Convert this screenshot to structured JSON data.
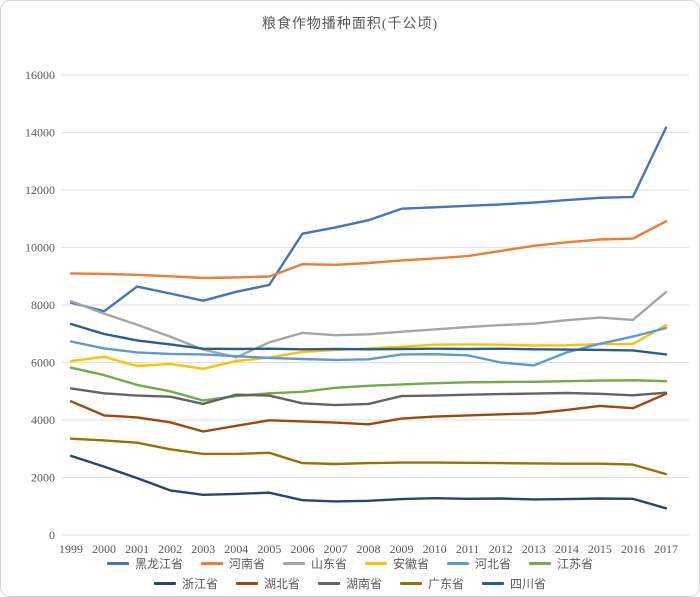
{
  "header": {
    "title": "粮食作物播种面积(千公顷)"
  },
  "colors": {
    "background": "#ffffff",
    "card_border": "#d6d6d6",
    "gridline": "#e2e2e2",
    "axis_text": "#595959",
    "title_text": "#595959"
  },
  "chart_data": {
    "type": "line",
    "title": "粮食作物播种面积(千公顷)",
    "xlabel": "",
    "ylabel": "",
    "x": [
      1999,
      2000,
      2001,
      2002,
      2003,
      2004,
      2005,
      2006,
      2007,
      2008,
      2009,
      2010,
      2011,
      2012,
      2013,
      2014,
      2015,
      2016,
      2017
    ],
    "ylim": [
      0,
      16000
    ],
    "yticks": [
      0,
      2000,
      4000,
      6000,
      8000,
      10000,
      12000,
      14000,
      16000
    ],
    "grid": "horizontal-only",
    "legend_position": "bottom",
    "legend_rows": [
      6,
      5
    ],
    "series": [
      {
        "name": "黑龙江省",
        "color": "#4472C4",
        "values": [
          8080,
          7780,
          8640,
          8400,
          8150,
          8460,
          8700,
          10480,
          10700,
          10950,
          11350,
          11400,
          11450,
          11500,
          11560,
          11650,
          11730,
          11760,
          14170
        ]
      },
      {
        "name": "河南省",
        "color": "#ED7D31",
        "values": [
          9100,
          9080,
          9050,
          9000,
          8940,
          8960,
          8990,
          9420,
          9400,
          9460,
          9550,
          9620,
          9700,
          9880,
          10060,
          10180,
          10280,
          10310,
          10910
        ]
      },
      {
        "name": "山东省",
        "color": "#A5A5A5",
        "values": [
          8130,
          7700,
          7310,
          6900,
          6450,
          6180,
          6700,
          7030,
          6950,
          6980,
          7070,
          7150,
          7230,
          7300,
          7350,
          7470,
          7560,
          7480,
          8450
        ]
      },
      {
        "name": "安徽省",
        "color": "#FFC000",
        "values": [
          6050,
          6200,
          5880,
          5950,
          5780,
          6050,
          6170,
          6370,
          6440,
          6490,
          6550,
          6620,
          6630,
          6620,
          6590,
          6600,
          6640,
          6640,
          7300
        ]
      },
      {
        "name": "河北省",
        "color": "#5B9BD5",
        "values": [
          6730,
          6490,
          6350,
          6300,
          6280,
          6220,
          6160,
          6120,
          6090,
          6110,
          6280,
          6290,
          6250,
          6000,
          5900,
          6350,
          6650,
          6900,
          7200
        ]
      },
      {
        "name": "江苏省",
        "color": "#70AD47",
        "values": [
          5820,
          5560,
          5220,
          5000,
          4680,
          4830,
          4930,
          4980,
          5120,
          5190,
          5240,
          5280,
          5310,
          5320,
          5330,
          5350,
          5370,
          5380,
          5350
        ]
      },
      {
        "name": "浙江省",
        "color": "#264478",
        "values": [
          2750,
          2380,
          1980,
          1550,
          1400,
          1430,
          1470,
          1210,
          1170,
          1190,
          1250,
          1280,
          1260,
          1270,
          1240,
          1250,
          1270,
          1260,
          930
        ]
      },
      {
        "name": "湖北省",
        "color": "#9E480E",
        "values": [
          4650,
          4160,
          4090,
          3920,
          3600,
          3800,
          3990,
          3950,
          3910,
          3850,
          4050,
          4120,
          4160,
          4200,
          4230,
          4350,
          4490,
          4410,
          4910
        ]
      },
      {
        "name": "湖南省",
        "color": "#636363",
        "values": [
          5100,
          4930,
          4850,
          4810,
          4560,
          4880,
          4850,
          4580,
          4520,
          4560,
          4830,
          4850,
          4880,
          4900,
          4920,
          4940,
          4910,
          4860,
          4950
        ]
      },
      {
        "name": "广东省",
        "color": "#997300",
        "values": [
          3350,
          3290,
          3210,
          2980,
          2820,
          2820,
          2860,
          2500,
          2470,
          2500,
          2520,
          2520,
          2510,
          2500,
          2490,
          2480,
          2480,
          2450,
          2120
        ]
      },
      {
        "name": "四川省",
        "color": "#255E91",
        "values": [
          7340,
          6990,
          6770,
          6630,
          6480,
          6470,
          6480,
          6460,
          6470,
          6460,
          6470,
          6480,
          6470,
          6480,
          6460,
          6450,
          6440,
          6420,
          6280
        ]
      }
    ]
  }
}
